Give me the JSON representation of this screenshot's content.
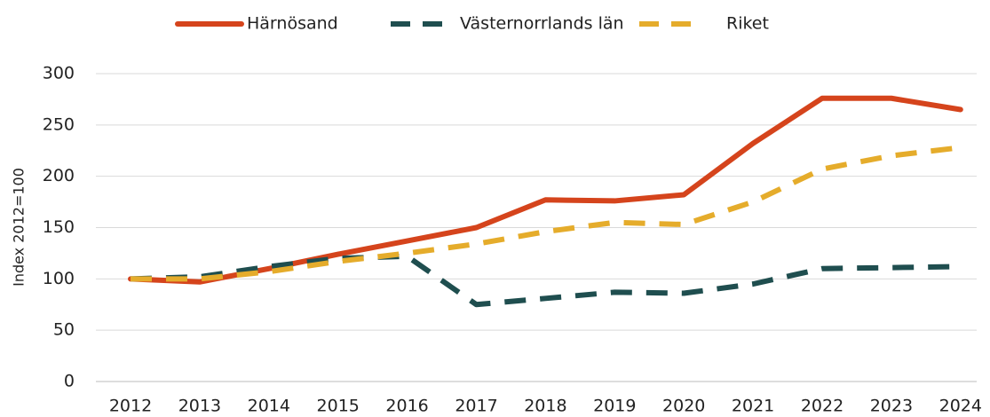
{
  "chart_data": {
    "type": "line",
    "y_label": "Index 2012=100",
    "categories": [
      "2012",
      "2013",
      "2014",
      "2015",
      "2016",
      "2017",
      "2018",
      "2019",
      "2020",
      "2021",
      "2022",
      "2023",
      "2024"
    ],
    "series": [
      {
        "name": "Härnösand",
        "color": "#d5441c",
        "dashed": false,
        "values": [
          100,
          97,
          110,
          124,
          137,
          150,
          177,
          176,
          182,
          232,
          276,
          276,
          265
        ]
      },
      {
        "name": "Västernorrlands län",
        "color": "#1f4e4f",
        "dashed": true,
        "values": [
          100,
          102,
          112,
          120,
          122,
          75,
          81,
          87,
          86,
          95,
          110,
          111,
          112
        ]
      },
      {
        "name": "Riket",
        "color": "#e5ac2b",
        "dashed": true,
        "values": [
          100,
          100,
          107,
          117,
          125,
          134,
          146,
          155,
          153,
          175,
          207,
          220,
          228
        ]
      }
    ],
    "ylim": [
      0,
      300
    ],
    "yticks": [
      0,
      50,
      100,
      150,
      200,
      250,
      300
    ],
    "grid": true,
    "legend": "top"
  }
}
